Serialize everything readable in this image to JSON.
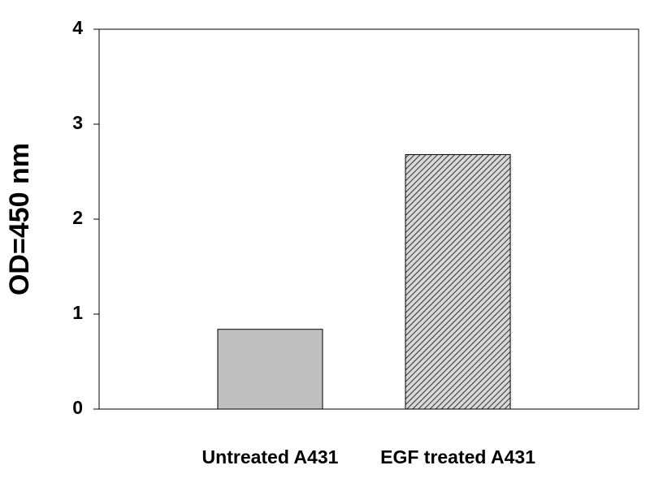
{
  "chart_data": {
    "type": "bar",
    "y_label": "OD=450 nm",
    "categories": [
      "Untreated A431",
      "EGF treated A431"
    ],
    "values": [
      0.84,
      2.68
    ],
    "colors": [
      "#c0c0c0",
      "#a8a8a8"
    ],
    "patterns": [
      "solid",
      "hatch"
    ],
    "ylim": [
      0,
      4
    ],
    "yticks": [
      0,
      1,
      2,
      3,
      4
    ],
    "grid": false
  }
}
